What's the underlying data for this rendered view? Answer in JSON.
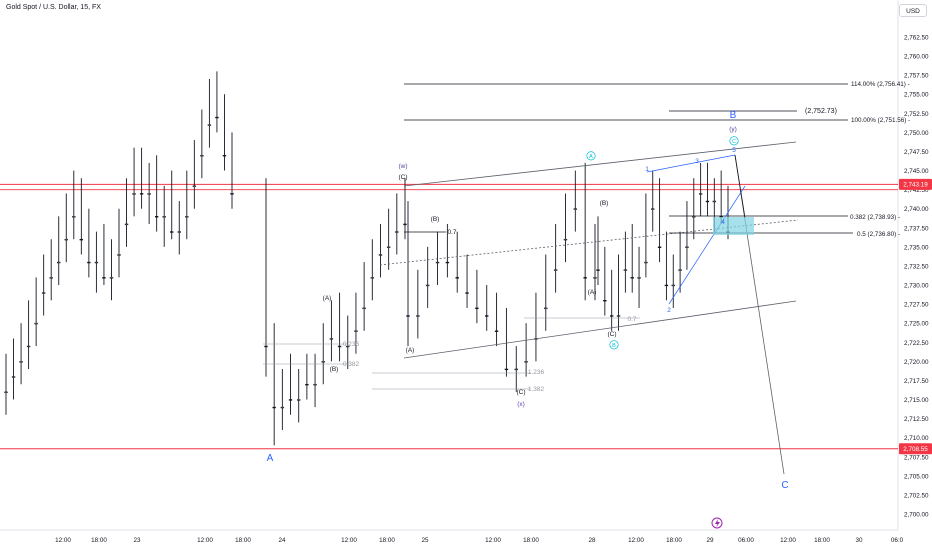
{
  "chart_data": {
    "type": "candlestick",
    "title": "Gold Spot / U.S. Dollar, 15, FX",
    "currency_button": "USD",
    "y_range": [
      2699,
      2765
    ],
    "y_ticks": [
      "2,762.50",
      "2,760.00",
      "2,757.50",
      "2,755.00",
      "2,752.50",
      "2,750.00",
      "2,747.50",
      "2,745.00",
      "2,742.50",
      "2,740.00",
      "2,737.50",
      "2,735.00",
      "2,732.50",
      "2,730.00",
      "2,727.50",
      "2,725.00",
      "2,722.50",
      "2,720.00",
      "2,717.50",
      "2,715.00",
      "2,712.50",
      "2,710.00",
      "2,707.50",
      "2,705.00",
      "2,702.50",
      "2,700.00"
    ],
    "x_ticks": [
      "12:00",
      "18:00",
      "23",
      "12:00",
      "18:00",
      "24",
      "12:00",
      "18:00",
      "25",
      "12:00",
      "18:00",
      "28",
      "12:00",
      "18:00",
      "29",
      "06:00",
      "12:00",
      "18:00",
      "30",
      "06:0"
    ],
    "price_badges": [
      {
        "label": "2,743.19",
        "value": 2743.19,
        "color": "#f23645"
      },
      {
        "label": "2,708.55",
        "value": 2708.55,
        "color": "#f23645"
      }
    ],
    "horizontal_lines": [
      {
        "value": 2743.19,
        "color": "#f23645"
      },
      {
        "value": 2742.5,
        "color": "#f23645"
      },
      {
        "value": 2708.55,
        "color": "#f23645"
      }
    ],
    "candles": [
      [
        2716,
        2721,
        2713,
        2718
      ],
      [
        2718,
        2723,
        2715,
        2720
      ],
      [
        2720,
        2725,
        2717,
        2722
      ],
      [
        2722,
        2728,
        2719,
        2725
      ],
      [
        2725,
        2731,
        2722,
        2729
      ],
      [
        2729,
        2734,
        2726,
        2731
      ],
      [
        2731,
        2736,
        2728,
        2733
      ],
      [
        2733,
        2739,
        2730,
        2736
      ],
      [
        2736,
        2742,
        2733,
        2739
      ],
      [
        2739,
        2745,
        2736,
        2741
      ],
      [
        2741,
        2744,
        2734,
        2736
      ],
      [
        2736,
        2740,
        2731,
        2733
      ],
      [
        2733,
        2737,
        2729,
        2734
      ],
      [
        2734,
        2738,
        2730,
        2731
      ],
      [
        2731,
        2736,
        2728,
        2734
      ],
      [
        2734,
        2740,
        2731,
        2738
      ],
      [
        2738,
        2744,
        2735,
        2742
      ],
      [
        2742,
        2748,
        2739,
        2745
      ],
      [
        2745,
        2748,
        2740,
        2742
      ],
      [
        2742,
        2746,
        2738,
        2744
      ],
      [
        2744,
        2747,
        2737,
        2739
      ],
      [
        2739,
        2743,
        2735,
        2741
      ],
      [
        2741,
        2745,
        2736,
        2737
      ],
      [
        2737,
        2741,
        2734,
        2739
      ],
      [
        2739,
        2745,
        2736,
        2743
      ],
      [
        2743,
        2749,
        2740,
        2747
      ],
      [
        2747,
        2753,
        2744,
        2751
      ],
      [
        2751,
        2757,
        2748,
        2755
      ],
      [
        2755,
        2758,
        2750,
        2752
      ],
      [
        2752,
        2755,
        2745,
        2747
      ],
      [
        2747,
        2750,
        2740,
        2742
      ],
      [
        2742,
        2744,
        2718,
        2722
      ],
      [
        2722,
        2725,
        2709,
        2714
      ],
      [
        2714,
        2719,
        2711,
        2717
      ],
      [
        2717,
        2721,
        2713,
        2715
      ],
      [
        2715,
        2719,
        2712,
        2718
      ],
      [
        2718,
        2721,
        2715,
        2717
      ],
      [
        2717,
        2721,
        2714,
        2720
      ],
      [
        2720,
        2725,
        2717,
        2723
      ],
      [
        2723,
        2728,
        2720,
        2726
      ],
      [
        2726,
        2729,
        2720,
        2722
      ],
      [
        2722,
        2726,
        2719,
        2724
      ],
      [
        2724,
        2729,
        2721,
        2727
      ],
      [
        2727,
        2733,
        2724,
        2731
      ],
      [
        2731,
        2736,
        2728,
        2734
      ],
      [
        2734,
        2738,
        2731,
        2735
      ],
      [
        2735,
        2740,
        2732,
        2737
      ],
      [
        2737,
        2742,
        2734,
        2740
      ],
      [
        2740,
        2744,
        2736,
        2738
      ],
      [
        2738,
        2741,
        2722,
        2726
      ],
      [
        2726,
        2732,
        2723,
        2730
      ],
      [
        2730,
        2735,
        2727,
        2733
      ],
      [
        2733,
        2737,
        2730,
        2735
      ],
      [
        2735,
        2738,
        2731,
        2733
      ],
      [
        2733,
        2737,
        2729,
        2731
      ],
      [
        2731,
        2734,
        2727,
        2729
      ],
      [
        2729,
        2732,
        2725,
        2727
      ],
      [
        2727,
        2730,
        2724,
        2726
      ],
      [
        2726,
        2729,
        2722,
        2724
      ],
      [
        2724,
        2727,
        2718,
        2719
      ],
      [
        2719,
        2722,
        2716,
        2720
      ],
      [
        2720,
        2725,
        2718,
        2723
      ],
      [
        2723,
        2729,
        2720,
        2727
      ],
      [
        2727,
        2734,
        2724,
        2732
      ],
      [
        2732,
        2738,
        2729,
        2736
      ],
      [
        2736,
        2742,
        2733,
        2740
      ],
      [
        2740,
        2745,
        2737,
        2743
      ],
      [
        2743,
        2746,
        2728,
        2731
      ],
      [
        2731,
        2738,
        2728,
        2736
      ],
      [
        2736,
        2739,
        2730,
        2732
      ],
      [
        2732,
        2735,
        2726,
        2728
      ],
      [
        2728,
        2732,
        2724,
        2726
      ],
      [
        2726,
        2734,
        2724,
        2732
      ],
      [
        2732,
        2737,
        2729,
        2735
      ],
      [
        2735,
        2738,
        2729,
        2731
      ],
      [
        2731,
        2735,
        2727,
        2733
      ],
      [
        2733,
        2742,
        2731,
        2740
      ],
      [
        2740,
        2745,
        2737,
        2742
      ],
      [
        2742,
        2744,
        2733,
        2735
      ],
      [
        2735,
        2737,
        2728,
        2730
      ],
      [
        2730,
        2734,
        2727,
        2732
      ],
      [
        2732,
        2737,
        2729,
        2735
      ],
      [
        2735,
        2741,
        2732,
        2739
      ],
      [
        2739,
        2744,
        2736,
        2742
      ],
      [
        2742,
        2746,
        2739,
        2744
      ],
      [
        2744,
        2746,
        2739,
        2741
      ],
      [
        2741,
        2744,
        2737,
        2742
      ],
      [
        2742,
        2745,
        2738,
        2739
      ],
      [
        2739,
        2743,
        2736,
        2737
      ]
    ],
    "annotations": [
      {
        "text": "(w)",
        "x": "Oct 24 18:30",
        "y": 2745.5,
        "color": "#5b3fa8"
      },
      {
        "text": "(C)",
        "x": "Oct 24 19:15",
        "y": 2743.8,
        "color": "#131722"
      },
      {
        "text": "(B)",
        "x": "Oct 25 02:00",
        "y": 2739.2,
        "color": "#131722"
      },
      {
        "text": "0.7",
        "x": "Oct 25 07:30",
        "y": 2736.2,
        "color": "#131722"
      },
      {
        "text": "(A)",
        "x": "Oct 24 12:45",
        "y": 2728.8,
        "color": "#131722"
      },
      {
        "text": "(B)",
        "x": "Oct 24 17:00",
        "y": 2719.6,
        "color": "#131722"
      },
      {
        "text": "(A)",
        "x": "Oct 24 19:30",
        "y": 2722.0,
        "color": "#131722"
      },
      {
        "text": "0.236",
        "x": "Oct 24 16:00",
        "y": 2722.5,
        "color": "#9598a1"
      },
      {
        "text": "0.382",
        "x": "Oct 24 16:00",
        "y": 2720.3,
        "color": "#9598a1"
      },
      {
        "text": "1.236",
        "x": "Oct 25 17:30",
        "y": 2719.0,
        "color": "#9598a1"
      },
      {
        "text": "1.382",
        "x": "Oct 25 17:30",
        "y": 2716.8,
        "color": "#9598a1"
      },
      {
        "text": "(C)",
        "x": "Oct 25 14:00",
        "y": 2715.0,
        "color": "#131722"
      },
      {
        "text": "(x)",
        "x": "Oct 25 14:00",
        "y": 2713.2,
        "color": "#5b3fa8"
      },
      {
        "text": "A",
        "x": "Oct 23 22:00",
        "y": 2706.7,
        "color": "#2962ff"
      },
      {
        "text": "A",
        "x": "Oct 28 00:00",
        "y": 2745.6,
        "color": "#00bcd4"
      },
      {
        "text": "(B)",
        "x": "Oct 28 02:00",
        "y": 2740.3,
        "color": "#131722"
      },
      {
        "text": "(A)",
        "x": "Oct 28 00:00",
        "y": 2728.8,
        "color": "#131722"
      },
      {
        "text": "(C)",
        "x": "Oct 28 05:30",
        "y": 2725.0,
        "color": "#131722"
      },
      {
        "text": "B",
        "x": "Oct 28 05:30",
        "y": 2722.3,
        "color": "#00bcd4"
      },
      {
        "text": "0.7",
        "x": "Oct 28 09:00",
        "y": 2725.5,
        "color": "#9598a1"
      },
      {
        "text": "1",
        "x": "Oct 28 13:00",
        "y": 2745.3,
        "color": "#2962ff"
      },
      {
        "text": "2",
        "x": "Oct 28 19:00",
        "y": 2726.3,
        "color": "#2962ff"
      },
      {
        "text": "3",
        "x": "Oct 28 23:00",
        "y": 2745.3,
        "color": "#2962ff"
      },
      {
        "text": "4",
        "x": "Oct 29 02:45",
        "y": 2737.9,
        "color": "#2962ff"
      },
      {
        "text": "5",
        "x": "Oct 29 04:00",
        "y": 2748.1,
        "color": "#2962ff"
      },
      {
        "text": "B",
        "x": "Oct 29 04:00",
        "y": 2752.5,
        "color": "#2962ff"
      },
      {
        "text": "(y)",
        "x": "Oct 29 04:00",
        "y": 2750.3,
        "color": "#5b3fa8"
      },
      {
        "text": "C",
        "x": "Oct 29 04:00",
        "y": 2748.3,
        "color": "#00bcd4"
      },
      {
        "text": "C",
        "x": "Oct 29 12:00",
        "y": 2702.7,
        "color": "#2962ff"
      }
    ],
    "levels": [
      {
        "label": "114.00% (2,756.41)",
        "value": 2756.41
      },
      {
        "label": "100.00% (2,751.56)",
        "value": 2751.56
      },
      {
        "label": "0.382 (2,738.93)",
        "value": 2738.93
      },
      {
        "label": "0.5 (2,736.80)",
        "value": 2736.8
      },
      {
        "label": "(2,752.73)",
        "value": 2752.73
      }
    ],
    "grid": false,
    "legend": "none",
    "colors": {
      "candle": "#131722",
      "red_line": "#f23645",
      "wave_blue": "#2962ff",
      "wave_cyan": "#00bcd4",
      "wave_purple": "#5b3fa8",
      "fib_grey": "#9598a1",
      "zone_fill": "#7fd3e3",
      "lightning": "#9c27b0"
    },
    "icon": "lightning-icon"
  }
}
